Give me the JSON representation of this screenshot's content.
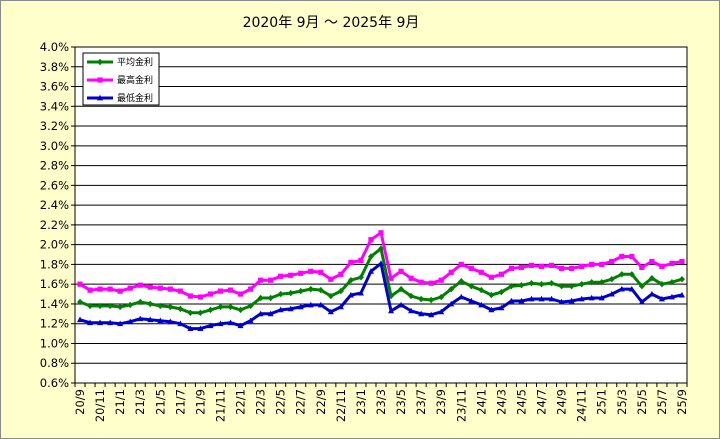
{
  "chart_data": {
    "type": "line",
    "title": "2020年 9月 ～ 2025年 9月",
    "xlabel": "",
    "ylabel": "",
    "ylim": [
      0.6,
      4.0
    ],
    "y_tick_step": 0.2,
    "y_tick_labels": [
      "0.6%",
      "0.8%",
      "1.0%",
      "1.2%",
      "1.4%",
      "1.6%",
      "1.8%",
      "2.0%",
      "2.2%",
      "2.4%",
      "2.6%",
      "2.8%",
      "3.0%",
      "3.2%",
      "3.4%",
      "3.6%",
      "3.8%",
      "4.0%"
    ],
    "x_tick_labels": [
      "20/9",
      "20/11",
      "21/1",
      "21/3",
      "21/5",
      "21/7",
      "21/9",
      "21/11",
      "22/1",
      "22/3",
      "22/5",
      "22/7",
      "22/9",
      "22/11",
      "23/1",
      "23/3",
      "23/5",
      "23/7",
      "23/9",
      "23/11",
      "24/1",
      "24/3",
      "24/5",
      "24/7",
      "24/9",
      "24/11",
      "25/1",
      "25/3",
      "25/5",
      "25/7",
      "25/9"
    ],
    "categories": [
      "20/9",
      "20/10",
      "20/11",
      "20/12",
      "21/1",
      "21/2",
      "21/3",
      "21/4",
      "21/5",
      "21/6",
      "21/7",
      "21/8",
      "21/9",
      "21/10",
      "21/11",
      "21/12",
      "22/1",
      "22/2",
      "22/3",
      "22/4",
      "22/5",
      "22/6",
      "22/7",
      "22/8",
      "22/9",
      "22/10",
      "22/11",
      "22/12",
      "23/1",
      "23/2",
      "23/3",
      "23/4",
      "23/5",
      "23/6",
      "23/7",
      "23/8",
      "23/9",
      "23/10",
      "23/11",
      "23/12",
      "24/1",
      "24/2",
      "24/3",
      "24/4",
      "24/5",
      "24/6",
      "24/7",
      "24/8",
      "24/9",
      "24/10",
      "24/11",
      "24/12",
      "25/1",
      "25/2",
      "25/3",
      "25/4",
      "25/5",
      "25/6",
      "25/7",
      "25/8",
      "25/9"
    ],
    "series": [
      {
        "name": "平均金利",
        "color": "#008000",
        "marker": "diamond",
        "values": [
          1.42,
          1.38,
          1.38,
          1.38,
          1.37,
          1.39,
          1.42,
          1.4,
          1.38,
          1.37,
          1.35,
          1.31,
          1.31,
          1.34,
          1.37,
          1.37,
          1.34,
          1.38,
          1.46,
          1.46,
          1.5,
          1.51,
          1.53,
          1.55,
          1.54,
          1.48,
          1.53,
          1.64,
          1.67,
          1.88,
          1.96,
          1.48,
          1.55,
          1.48,
          1.45,
          1.44,
          1.47,
          1.55,
          1.63,
          1.58,
          1.54,
          1.49,
          1.52,
          1.58,
          1.59,
          1.61,
          1.6,
          1.61,
          1.58,
          1.58,
          1.6,
          1.62,
          1.62,
          1.65,
          1.7,
          1.7,
          1.58,
          1.66,
          1.6,
          1.62,
          1.65
        ]
      },
      {
        "name": "最高金利",
        "color": "#ff00ff",
        "marker": "square",
        "values": [
          1.6,
          1.54,
          1.55,
          1.55,
          1.53,
          1.56,
          1.59,
          1.57,
          1.56,
          1.55,
          1.53,
          1.48,
          1.47,
          1.5,
          1.53,
          1.54,
          1.5,
          1.55,
          1.64,
          1.64,
          1.68,
          1.69,
          1.71,
          1.73,
          1.72,
          1.65,
          1.7,
          1.82,
          1.84,
          2.05,
          2.12,
          1.66,
          1.73,
          1.66,
          1.62,
          1.61,
          1.64,
          1.72,
          1.8,
          1.76,
          1.72,
          1.67,
          1.7,
          1.76,
          1.77,
          1.79,
          1.78,
          1.79,
          1.76,
          1.76,
          1.78,
          1.8,
          1.8,
          1.83,
          1.88,
          1.88,
          1.77,
          1.83,
          1.78,
          1.81,
          1.83
        ]
      },
      {
        "name": "最低金利",
        "color": "#0000cc",
        "marker": "triangle",
        "values": [
          1.24,
          1.21,
          1.21,
          1.21,
          1.2,
          1.22,
          1.25,
          1.24,
          1.23,
          1.22,
          1.2,
          1.15,
          1.15,
          1.18,
          1.2,
          1.21,
          1.18,
          1.23,
          1.3,
          1.3,
          1.34,
          1.35,
          1.37,
          1.39,
          1.39,
          1.32,
          1.37,
          1.49,
          1.51,
          1.73,
          1.81,
          1.33,
          1.39,
          1.33,
          1.3,
          1.29,
          1.32,
          1.4,
          1.47,
          1.43,
          1.39,
          1.34,
          1.36,
          1.43,
          1.43,
          1.45,
          1.45,
          1.45,
          1.42,
          1.43,
          1.45,
          1.46,
          1.46,
          1.5,
          1.55,
          1.55,
          1.42,
          1.5,
          1.45,
          1.47,
          1.49
        ]
      }
    ],
    "grid": true,
    "legend_position": "top-left"
  }
}
